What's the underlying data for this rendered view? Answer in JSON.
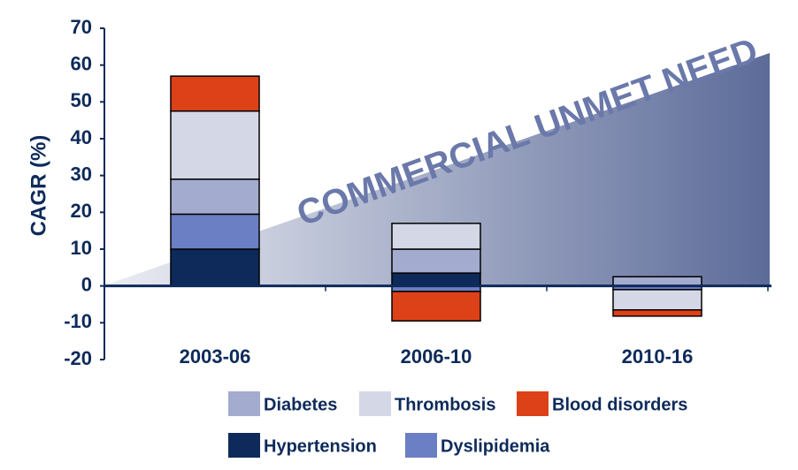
{
  "chart_data": {
    "type": "bar",
    "stacked": true,
    "y_label": "CAGR (%)",
    "annotation": "COMMERCIAL UNMET NEED",
    "categories": [
      "2003-06",
      "2006-10",
      "2010-16"
    ],
    "series": [
      {
        "name": "Hypertension",
        "color": "#0d2a5a",
        "values": [
          10,
          3.5,
          0
        ]
      },
      {
        "name": "Dyslipidemia",
        "color": "#6b7fc4",
        "values": [
          9.5,
          -1.5,
          -1
        ]
      },
      {
        "name": "Diabetes",
        "color": "#a3abcf",
        "values": [
          9.5,
          6.5,
          2.5
        ]
      },
      {
        "name": "Thrombosis",
        "color": "#d4d8e6",
        "values": [
          18.5,
          7,
          -5.5
        ]
      },
      {
        "name": "Blood disorders",
        "color": "#dd4118",
        "values": [
          9.5,
          -8,
          -1.7
        ]
      }
    ],
    "ylim": [
      -20,
      70
    ],
    "yticks": [
      -20,
      -10,
      0,
      10,
      20,
      30,
      40,
      50,
      60,
      70
    ]
  }
}
